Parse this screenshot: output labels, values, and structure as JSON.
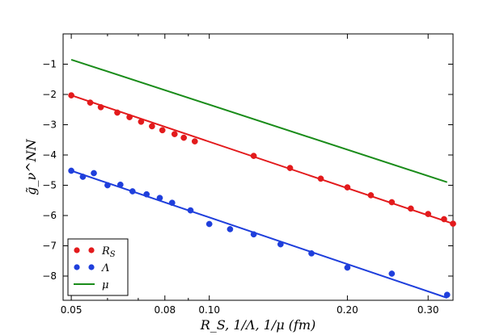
{
  "chart_data": {
    "type": "scatter",
    "x_scale": "log",
    "xlabel": "R_S,  1/Λ,  1/μ (fm)",
    "ylabel": "g̃_ν^NN",
    "xlim": [
      0.048,
      0.34
    ],
    "ylim": [
      -8.8,
      0
    ],
    "xticks": [
      {
        "value": 0.05,
        "label": "0.05"
      },
      {
        "value": 0.08,
        "label": "0.08"
      },
      {
        "value": 0.1,
        "label": "0.10"
      },
      {
        "value": 0.2,
        "label": "0.20"
      },
      {
        "value": 0.3,
        "label": "0.30"
      }
    ],
    "yticks": [
      {
        "value": -1,
        "label": "−1"
      },
      {
        "value": -2,
        "label": "−2"
      },
      {
        "value": -3,
        "label": "−3"
      },
      {
        "value": -4,
        "label": "−4"
      },
      {
        "value": -5,
        "label": "−5"
      },
      {
        "value": -6,
        "label": "−6"
      },
      {
        "value": -7,
        "label": "−7"
      },
      {
        "value": -8,
        "label": "−8"
      }
    ],
    "series": [
      {
        "name": "R_S",
        "legend_label": "R",
        "legend_sub": "S",
        "color": "#e31a1c",
        "points": [
          [
            0.05,
            -2.03
          ],
          [
            0.055,
            -2.27
          ],
          [
            0.058,
            -2.42
          ],
          [
            0.063,
            -2.6
          ],
          [
            0.067,
            -2.75
          ],
          [
            0.071,
            -2.9
          ],
          [
            0.075,
            -3.05
          ],
          [
            0.079,
            -3.18
          ],
          [
            0.084,
            -3.31
          ],
          [
            0.088,
            -3.43
          ],
          [
            0.093,
            -3.55
          ],
          [
            0.125,
            -4.03
          ],
          [
            0.15,
            -4.43
          ],
          [
            0.175,
            -4.78
          ],
          [
            0.2,
            -5.07
          ],
          [
            0.225,
            -5.33
          ],
          [
            0.25,
            -5.56
          ],
          [
            0.275,
            -5.77
          ],
          [
            0.3,
            -5.95
          ],
          [
            0.325,
            -6.12
          ],
          [
            0.34,
            -6.27
          ]
        ],
        "fit": [
          [
            0.05,
            -2.03
          ],
          [
            0.34,
            -6.27
          ]
        ]
      },
      {
        "name": "Λ",
        "legend_label": "Λ",
        "legend_sub": "",
        "color": "#1f3fdc",
        "points": [
          [
            0.05,
            -4.52
          ],
          [
            0.053,
            -4.72
          ],
          [
            0.056,
            -4.6
          ],
          [
            0.06,
            -5.0
          ],
          [
            0.064,
            -4.98
          ],
          [
            0.068,
            -5.2
          ],
          [
            0.073,
            -5.3
          ],
          [
            0.078,
            -5.42
          ],
          [
            0.083,
            -5.58
          ],
          [
            0.091,
            -5.83
          ],
          [
            0.1,
            -6.28
          ],
          [
            0.111,
            -6.45
          ],
          [
            0.125,
            -6.62
          ],
          [
            0.143,
            -6.95
          ],
          [
            0.167,
            -7.25
          ],
          [
            0.2,
            -7.72
          ],
          [
            0.25,
            -7.92
          ],
          [
            0.33,
            -8.62
          ]
        ],
        "fit": [
          [
            0.05,
            -4.52
          ],
          [
            0.33,
            -8.72
          ]
        ]
      },
      {
        "name": "μ",
        "legend_label": "μ",
        "legend_sub": "",
        "color": "#1a8c1a",
        "points": [],
        "fit": [
          [
            0.05,
            -0.85
          ],
          [
            0.33,
            -4.9
          ]
        ]
      }
    ],
    "legend_position": "lower-left"
  }
}
